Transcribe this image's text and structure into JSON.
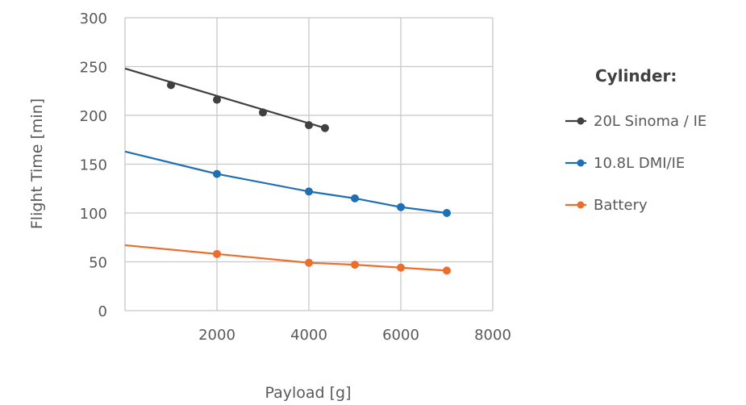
{
  "chart_data": {
    "type": "line",
    "xlabel": "Payload [g]",
    "ylabel": "Flight Time [min]",
    "xlim": [
      0,
      8000
    ],
    "ylim": [
      0,
      300
    ],
    "xticks": [
      2000,
      4000,
      6000,
      8000
    ],
    "yticks": [
      0,
      50,
      100,
      150,
      200,
      250,
      300
    ],
    "grid": true,
    "legend_title": "Cylinder:",
    "legend_position": "right",
    "series": [
      {
        "name": "20L Sinoma / IE",
        "color": "#404040",
        "x": [
          1000,
          2000,
          3000,
          4000,
          4350
        ],
        "y": [
          231,
          216,
          203,
          190,
          187
        ],
        "trend_x": [
          0,
          4350
        ],
        "trend_y": [
          248,
          187
        ]
      },
      {
        "name": "10.8L DMI/IE",
        "color": "#1f6fb5",
        "x": [
          2000,
          4000,
          5000,
          6000,
          7000
        ],
        "y": [
          140,
          122,
          115,
          106,
          100
        ],
        "trend_x": [
          0,
          2000,
          4000,
          5000,
          6000,
          7000
        ],
        "trend_y": [
          163,
          140,
          122,
          115,
          106,
          100
        ]
      },
      {
        "name": "Battery",
        "color": "#ed6d2d",
        "x": [
          2000,
          4000,
          5000,
          6000,
          7000
        ],
        "y": [
          58,
          49,
          47,
          44,
          41
        ],
        "trend_x": [
          0,
          2000,
          4000,
          5000,
          6000,
          7000
        ],
        "trend_y": [
          67,
          58,
          49,
          47,
          44,
          41
        ]
      }
    ]
  }
}
